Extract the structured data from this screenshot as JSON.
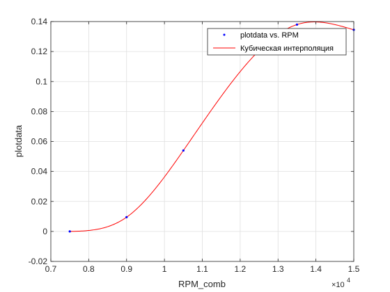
{
  "chart_data": {
    "type": "line",
    "xlabel": "RPM_comb",
    "ylabel": "plotdata",
    "x_exponent_base": "×10",
    "x_exponent_power": "4",
    "xlim": [
      0.7,
      1.5
    ],
    "ylim": [
      -0.02,
      0.14
    ],
    "x_ticks": [
      0.7,
      0.8,
      0.9,
      1.0,
      1.1,
      1.2,
      1.3,
      1.4,
      1.5
    ],
    "x_tick_labels": [
      "0.7",
      "0.8",
      "0.9",
      "1",
      "1.1",
      "1.2",
      "1.3",
      "1.4",
      "1.5"
    ],
    "y_ticks": [
      -0.02,
      0,
      0.02,
      0.04,
      0.06,
      0.08,
      0.1,
      0.12,
      0.14
    ],
    "y_tick_labels": [
      "-0.02",
      "0",
      "0.02",
      "0.04",
      "0.06",
      "0.08",
      "0.1",
      "0.12",
      "0.14"
    ],
    "grid": true,
    "legend_position": "top-right",
    "series": [
      {
        "name": "plotdata vs. RPM",
        "style": "points",
        "color": "#0000ff",
        "x": [
          0.75,
          0.9,
          1.05,
          1.35,
          1.5
        ],
        "y": [
          0.0,
          0.0095,
          0.054,
          0.138,
          0.1345
        ]
      },
      {
        "name": "Кубическая интерполяция",
        "style": "line",
        "color": "#ff0000",
        "x": [
          0.75,
          0.9,
          1.05,
          1.35,
          1.5
        ],
        "y": [
          0.0,
          0.0095,
          0.054,
          0.138,
          0.1345
        ]
      }
    ]
  }
}
